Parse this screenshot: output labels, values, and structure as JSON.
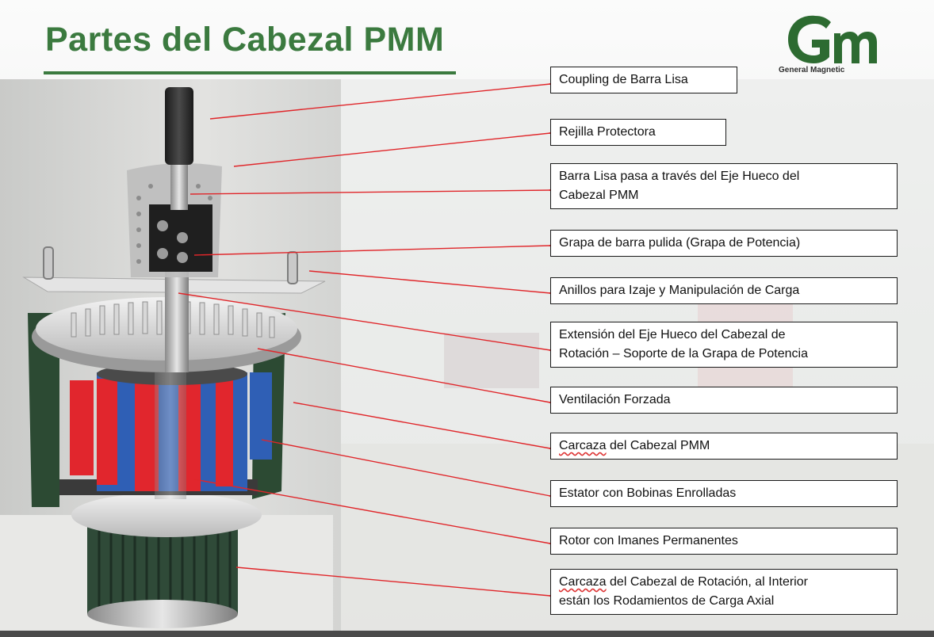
{
  "title": "Partes del Cabezal PMM",
  "logo": {
    "mark_text": "Gm",
    "caption": "General Magnetic"
  },
  "colors": {
    "title_green": "#3b7a3f",
    "arrow_red": "#e0262a",
    "rotor_red": "#e1262d",
    "rotor_blue": "#2f5fb5",
    "housing_green": "#2c4a33"
  },
  "labels": {
    "coupling": "Coupling de Barra Lisa",
    "rejilla": "Rejilla Protectora",
    "barra_1": "Barra Lisa pasa a través del Eje Hueco del",
    "barra_2": "Cabezal PMM",
    "grapa": "Grapa de barra pulida (Grapa de Potencia)",
    "anillos": "Anillos para Izaje y Manipulación de Carga",
    "extension_1": "Extensión del Eje Hueco del Cabezal de",
    "extension_2": "Rotación – Soporte de la Grapa de Potencia",
    "ventilacion": "Ventilación Forzada",
    "carcaza_pmm_a": "Carcaza",
    "carcaza_pmm_b": " del Cabezal PMM",
    "estator": "Estator con Bobinas Enrolladas",
    "rotor": "Rotor con Imanes Permanentes",
    "carcaza_rot_a": "Carcaza",
    "carcaza_rot_b": " del Cabezal de Rotación, al Interior",
    "carcaza_rot_2": "están los Rodamientos de Carga Axial"
  }
}
